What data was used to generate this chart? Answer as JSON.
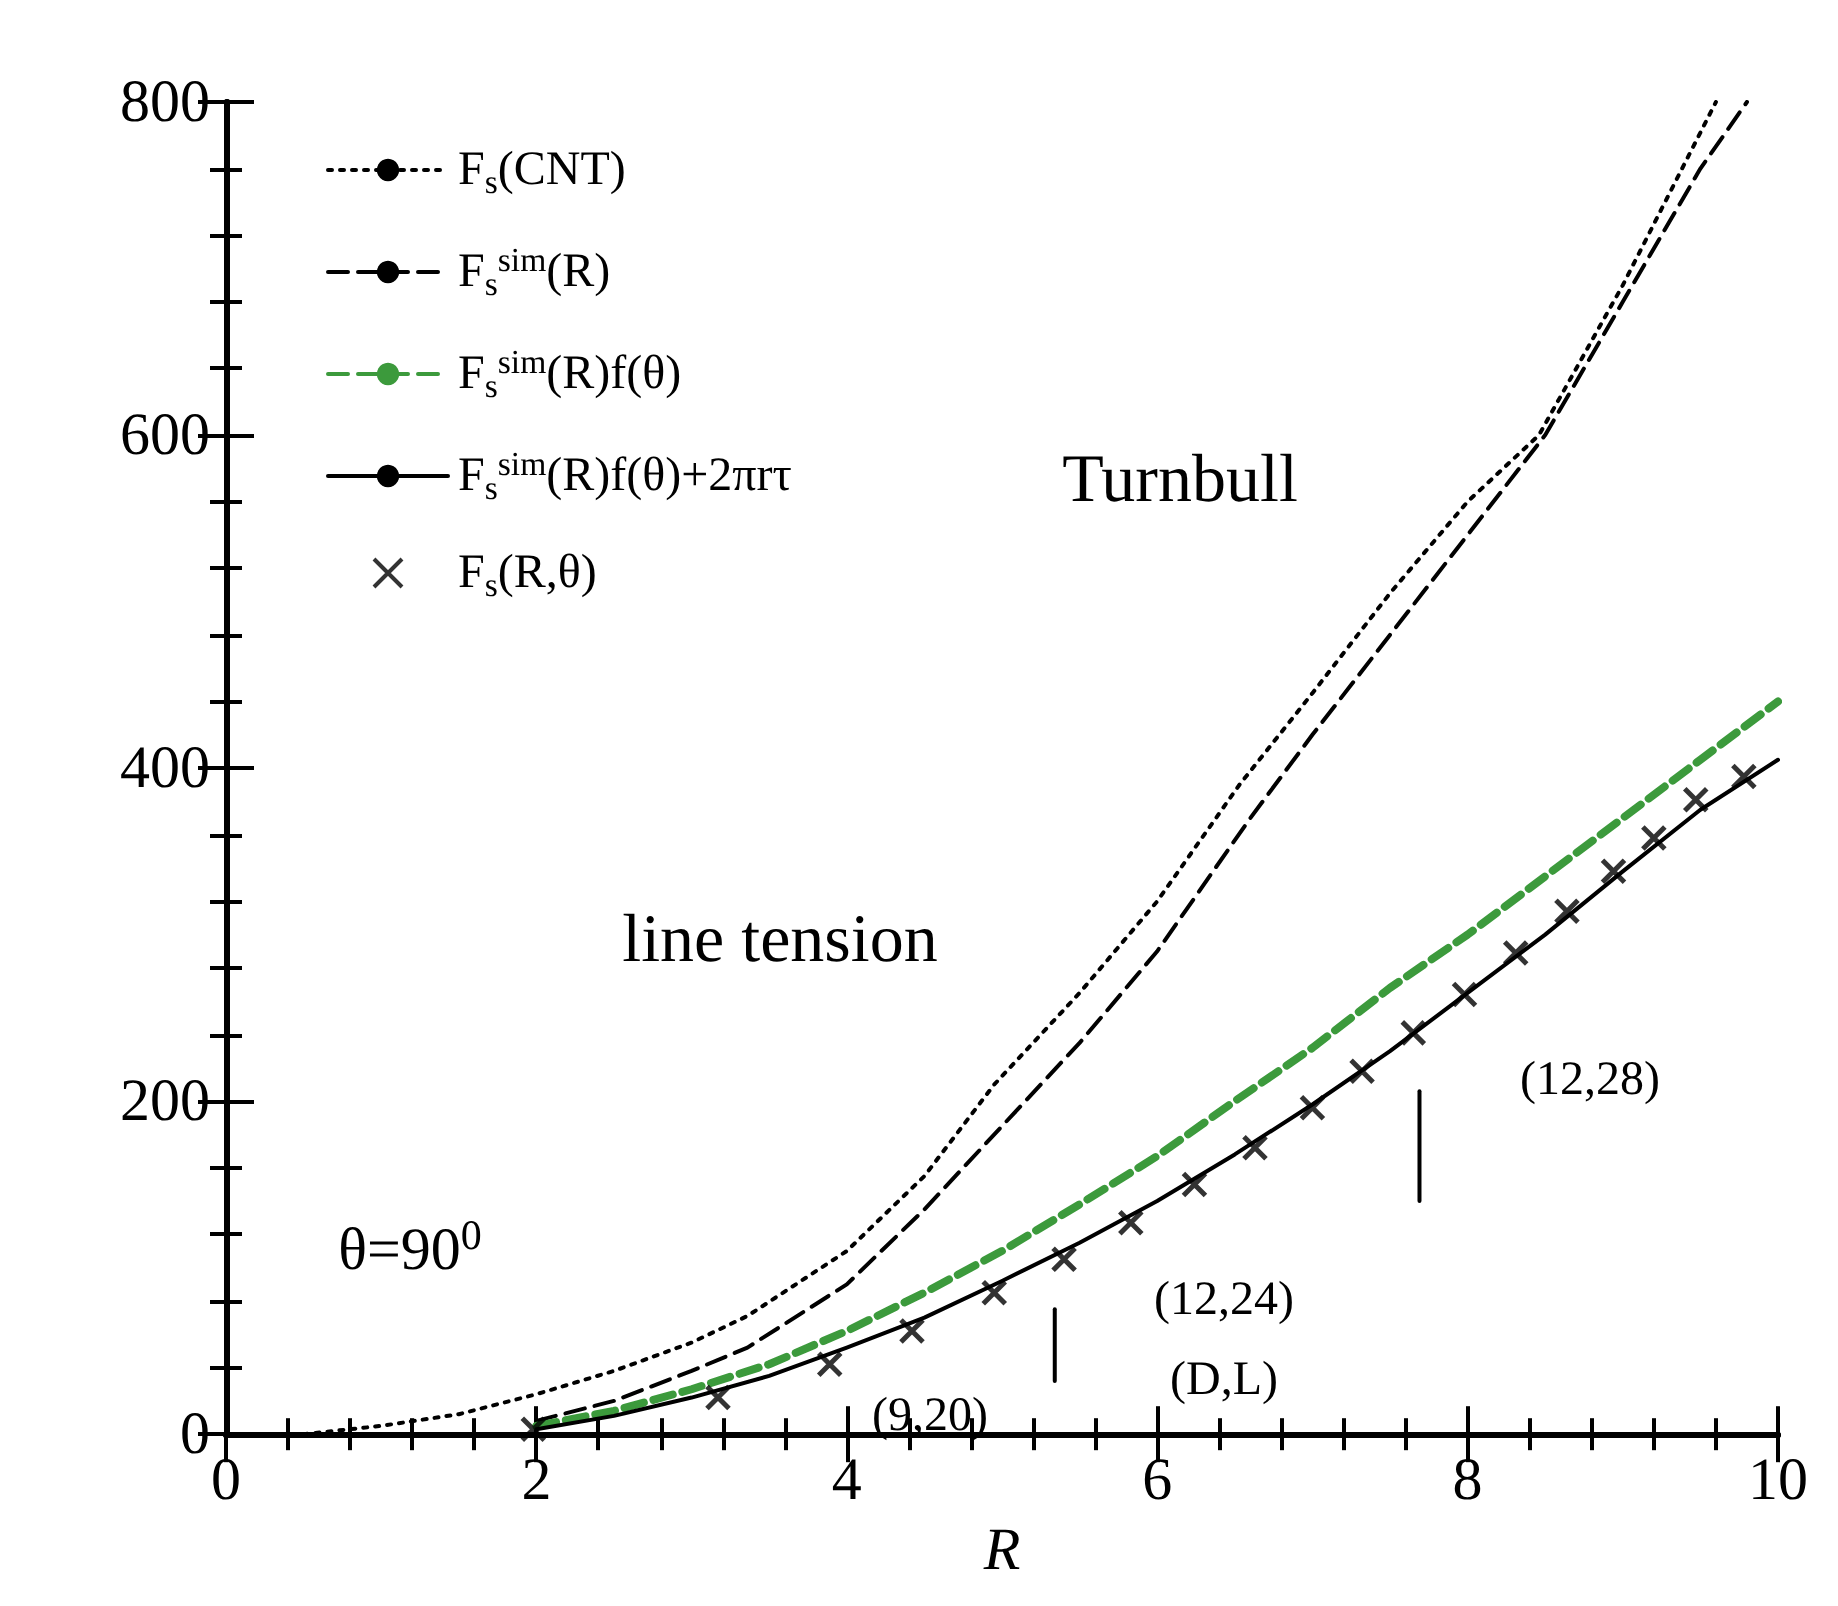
{
  "chart_data": {
    "type": "line",
    "xlabel": "R",
    "xlim": [
      0,
      10
    ],
    "xticks": [
      0,
      2,
      4,
      6,
      8,
      10
    ],
    "ylim": [
      0,
      800
    ],
    "yticks": [
      0,
      200,
      400,
      600,
      800
    ],
    "grid": false,
    "legend": "top left",
    "series": [
      {
        "name": "F$_{s}$(CNT)",
        "color": "#000000",
        "line_style": "dotted",
        "x": [
          0.5,
          1,
          1.5,
          2,
          2.5,
          3,
          3.36,
          4,
          4.5,
          4.95,
          5.5,
          6,
          6.53,
          7,
          7.5,
          8,
          8.46,
          9,
          9.6
        ],
        "values": [
          0,
          5,
          12,
          24,
          38,
          55,
          71,
          110,
          155,
          210,
          265,
          320,
          390,
          445,
          505,
          560,
          600,
          690,
          800
        ]
      },
      {
        "name": "F$_{s}$$^{sim}$(R)",
        "color": "#000000",
        "line_style": "dashed",
        "x": [
          2,
          2.5,
          3,
          3.36,
          4,
          4.5,
          5,
          5.5,
          6,
          6.6,
          7,
          7.5,
          8,
          8.5,
          9,
          9.5,
          9.8
        ],
        "values": [
          8,
          20,
          38,
          52,
          90,
          135,
          185,
          235,
          290,
          370,
          420,
          480,
          540,
          600,
          680,
          760,
          800
        ]
      },
      {
        "name": "F$_{s}$$^{sim}$(R)f(θ)",
        "color": "#3c9a3c",
        "line_style": "dashed",
        "x": [
          2,
          2.5,
          3,
          3.5,
          4,
          4.5,
          5,
          5.5,
          6,
          6.5,
          7,
          7.5,
          8,
          8.5,
          9,
          9.5,
          10
        ],
        "values": [
          5,
          14,
          27,
          42,
          62,
          85,
          110,
          138,
          167,
          200,
          232,
          268,
          300,
          335,
          370,
          405,
          440
        ]
      },
      {
        "name": "F$_{s}$$^{sim}$(R)f(θ)+2πrτ",
        "color": "#000000",
        "line_style": "solid",
        "x": [
          2,
          2.5,
          3,
          3.5,
          4,
          4.5,
          5,
          5.5,
          6,
          6.5,
          7,
          7.5,
          8,
          8.5,
          9,
          9.5,
          10
        ],
        "values": [
          3,
          11,
          22,
          35,
          52,
          70,
          92,
          115,
          140,
          168,
          198,
          230,
          265,
          300,
          338,
          375,
          405
        ]
      },
      {
        "name": "F$_{s}$(R,θ)",
        "color": "#000000",
        "type": "scatter",
        "marker": "cross",
        "x": [
          1.98,
          3.17,
          3.89,
          4.42,
          4.95,
          5.4,
          5.83,
          6.24,
          6.63,
          7.0,
          7.32,
          7.65,
          7.98,
          8.31,
          8.64,
          8.94,
          9.2,
          9.47,
          9.78
        ],
        "values": [
          3,
          22,
          42,
          62,
          85,
          105,
          127,
          150,
          172,
          196,
          218,
          241,
          264,
          289,
          314,
          338,
          358,
          381,
          395
        ]
      },
      {
        "color": "#000000",
        "line_style": "solid",
        "x": [
          5.34,
          5.34
        ],
        "values": [
          32,
          75
        ]
      },
      {
        "color": "#000000",
        "line_style": "solid",
        "x": [
          7.69,
          7.69
        ],
        "values": [
          140,
          206
        ]
      }
    ],
    "annotations": [
      "(9,20)",
      "(12,24)",
      "(D,L)",
      "(12,28)",
      "θ=90$^{0}$",
      "Turnbull",
      "line tension"
    ]
  }
}
